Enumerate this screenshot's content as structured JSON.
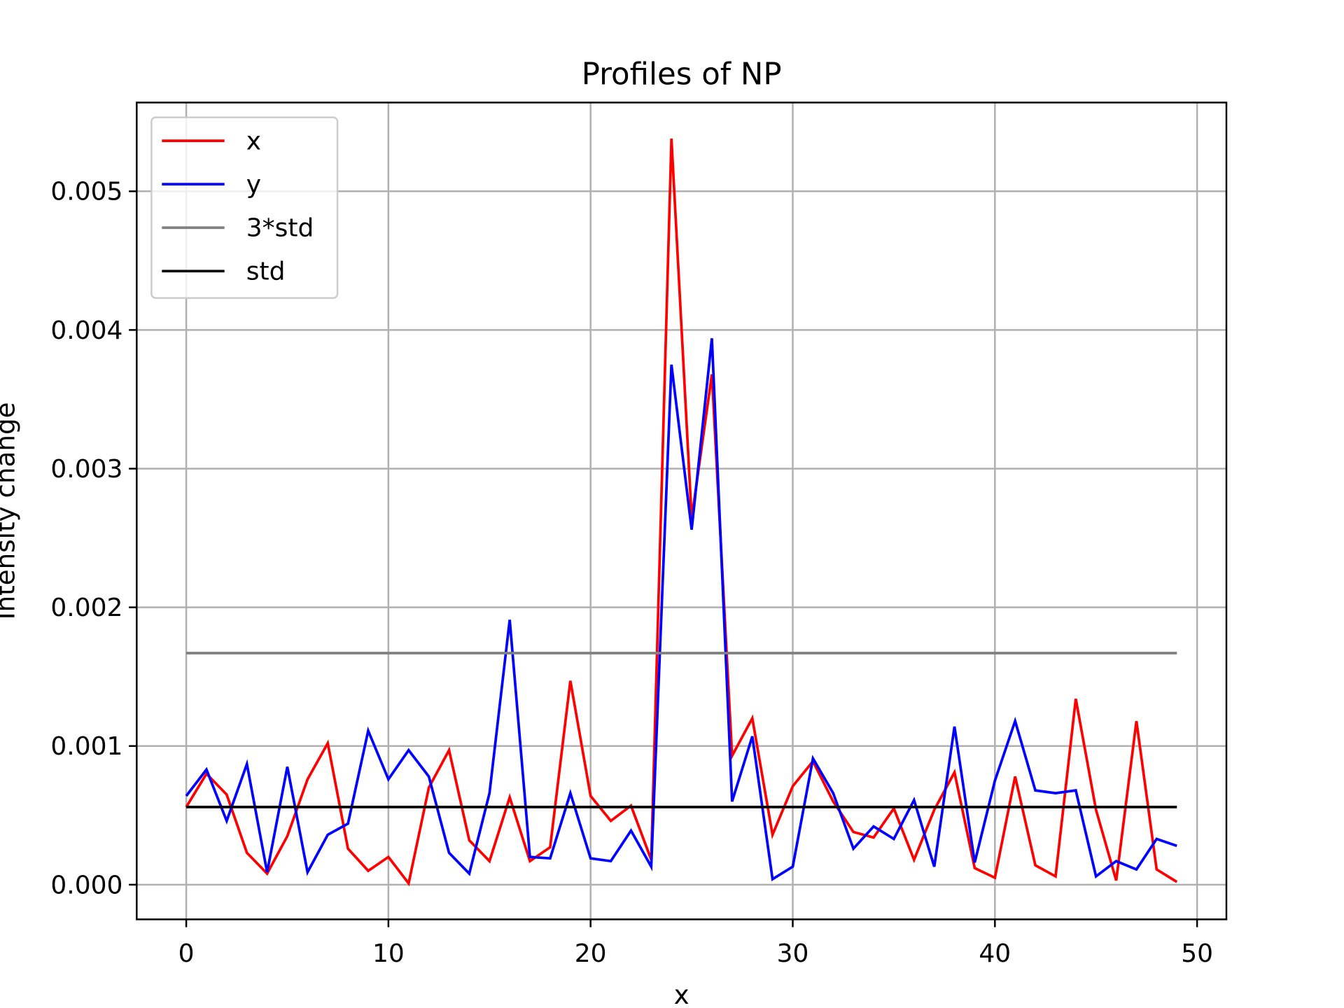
{
  "chart_data": {
    "type": "line",
    "title": "Profiles of NP",
    "xlabel": "x",
    "ylabel": "Intensity change",
    "x": [
      0,
      1,
      2,
      3,
      4,
      5,
      6,
      7,
      8,
      9,
      10,
      11,
      12,
      13,
      14,
      15,
      16,
      17,
      18,
      19,
      20,
      21,
      22,
      23,
      24,
      25,
      26,
      27,
      28,
      29,
      30,
      31,
      32,
      33,
      34,
      35,
      36,
      37,
      38,
      39,
      40,
      41,
      42,
      43,
      44,
      45,
      46,
      47,
      48,
      49
    ],
    "series": [
      {
        "name": "x",
        "color": "#ff0000",
        "values": [
          0.00056,
          0.0008,
          0.00065,
          0.00023,
          8e-05,
          0.00035,
          0.00076,
          0.00102,
          0.00026,
          0.0001,
          0.0002,
          1e-05,
          0.0007,
          0.00097,
          0.00032,
          0.00017,
          0.00063,
          0.00017,
          0.00027,
          0.00147,
          0.00064,
          0.00046,
          0.00057,
          0.00018,
          0.00538,
          0.00264,
          0.00368,
          0.00093,
          0.0012,
          0.00036,
          0.00071,
          0.00089,
          0.0006,
          0.00038,
          0.00034,
          0.00055,
          0.00018,
          0.00054,
          0.00081,
          0.00012,
          5e-05,
          0.00078,
          0.00014,
          6e-05,
          0.00134,
          0.00054,
          3e-05,
          0.00118,
          0.00011,
          2e-05
        ]
      },
      {
        "name": "y",
        "color": "#0000ff",
        "values": [
          0.00064,
          0.00083,
          0.00046,
          0.00087,
          9e-05,
          0.00085,
          9e-05,
          0.00036,
          0.00044,
          0.00111,
          0.00076,
          0.00097,
          0.00078,
          0.00023,
          8e-05,
          0.00066,
          0.00191,
          0.0002,
          0.00019,
          0.00066,
          0.00019,
          0.00017,
          0.00039,
          0.00013,
          0.00375,
          0.00256,
          0.00394,
          0.0006,
          0.00107,
          4e-05,
          0.00013,
          0.00091,
          0.00066,
          0.00026,
          0.00042,
          0.00033,
          0.00061,
          0.00013,
          0.00114,
          0.00016,
          0.00075,
          0.00118,
          0.00068,
          0.00066,
          0.00068,
          6e-05,
          0.00017,
          0.00011,
          0.00033,
          0.00028
        ]
      },
      {
        "name": "3*std",
        "color": "#808080",
        "x": [
          0,
          49
        ],
        "values": [
          0.00167,
          0.00167
        ]
      },
      {
        "name": "std",
        "color": "#000000",
        "x": [
          0,
          49
        ],
        "values": [
          0.00056,
          0.00056
        ]
      }
    ],
    "xlim": [
      -2.45,
      51.45
    ],
    "ylim": [
      -0.00025,
      0.00564
    ],
    "xticks": [
      0,
      10,
      20,
      30,
      40,
      50
    ],
    "yticks": [
      {
        "value": 0,
        "label": "0.000"
      },
      {
        "value": 0.001,
        "label": "0.001"
      },
      {
        "value": 0.002,
        "label": "0.002"
      },
      {
        "value": 0.003,
        "label": "0.003"
      },
      {
        "value": 0.004,
        "label": "0.004"
      },
      {
        "value": 0.005,
        "label": "0.005"
      }
    ],
    "grid": true,
    "legend": "upper left"
  }
}
